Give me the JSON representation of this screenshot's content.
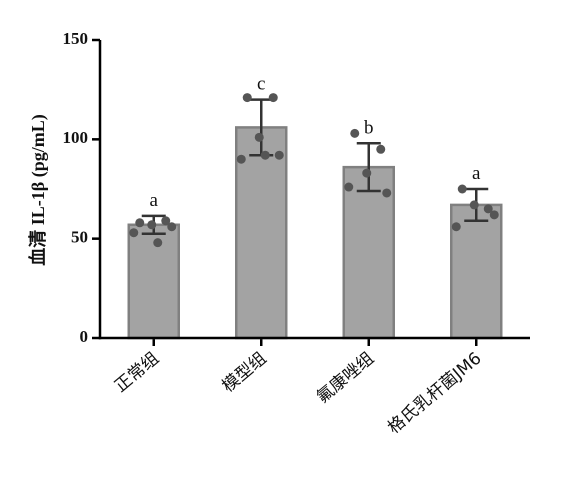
{
  "chart_data": {
    "type": "bar",
    "ylabel": "血清 IL-1β (pg/mL)",
    "categories": [
      "正常组",
      "模型组",
      "氟康唑组",
      "格氏乳杆菌JM6"
    ],
    "values": [
      57,
      106,
      86,
      67
    ],
    "errors": [
      4.5,
      14,
      12,
      8
    ],
    "points": [
      [
        58,
        59,
        57,
        56,
        53,
        48
      ],
      [
        121,
        121,
        101,
        92,
        90,
        92
      ],
      [
        103,
        95,
        83,
        73,
        76
      ],
      [
        75,
        65,
        67,
        62,
        56
      ]
    ],
    "annotations": [
      "a",
      "c",
      "b",
      "a"
    ],
    "color": "#a3a3a3",
    "edge_color": "#808080",
    "point_color": "#555555",
    "ylim": [
      0,
      150
    ],
    "yticks": [
      0,
      50,
      100,
      150
    ]
  }
}
